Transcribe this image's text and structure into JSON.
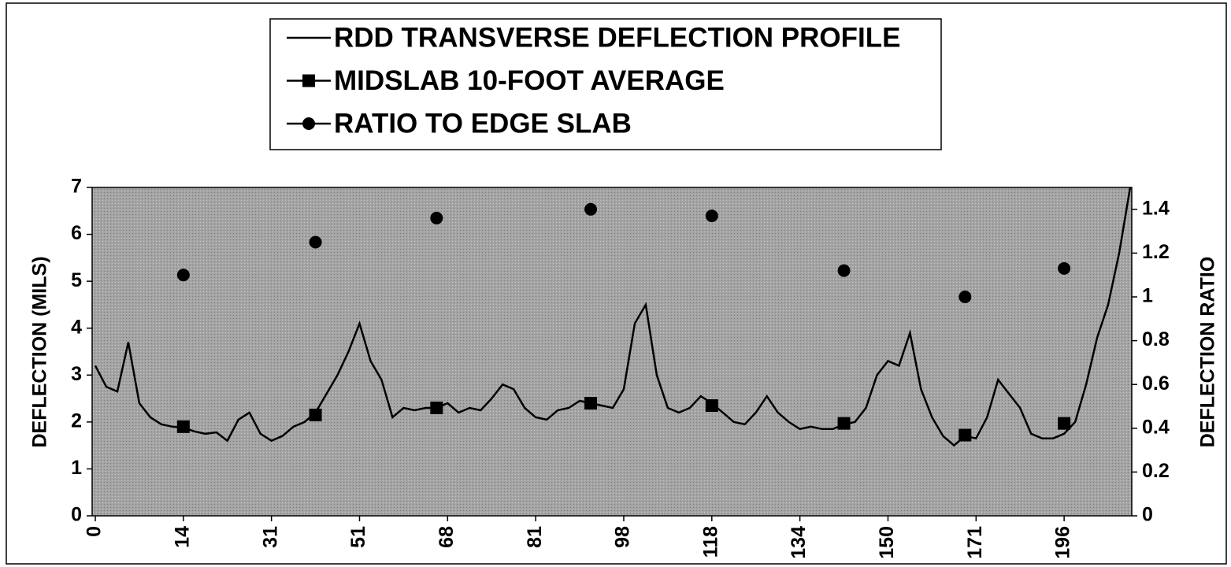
{
  "chart_data": {
    "type": "line",
    "y_label": "DEFLECTION (MILS)",
    "y2_label": "DEFLECTION RATIO",
    "categories": [
      "0",
      null,
      null,
      null,
      null,
      null,
      null,
      null,
      "14",
      null,
      null,
      null,
      null,
      null,
      null,
      null,
      "31",
      null,
      null,
      null,
      null,
      null,
      null,
      null,
      "51",
      null,
      null,
      null,
      null,
      null,
      null,
      null,
      "68",
      null,
      null,
      null,
      null,
      null,
      null,
      null,
      "81",
      null,
      null,
      null,
      null,
      null,
      null,
      null,
      "98",
      null,
      null,
      null,
      null,
      null,
      null,
      null,
      "118",
      null,
      null,
      null,
      null,
      null,
      null,
      null,
      "134",
      null,
      null,
      null,
      null,
      null,
      null,
      null,
      "150",
      null,
      null,
      null,
      null,
      null,
      null,
      null,
      "171",
      null,
      null,
      null,
      null,
      null,
      null,
      null,
      "196",
      null,
      null,
      null,
      null,
      null,
      null
    ],
    "ylim": [
      0,
      7
    ],
    "yticks": [
      0,
      1,
      2,
      3,
      4,
      5,
      6,
      7
    ],
    "y2lim": [
      0,
      1.5
    ],
    "y2ticks": [
      0,
      0.2,
      0.4,
      0.6,
      0.8,
      1,
      1.2,
      1.4
    ],
    "series": [
      {
        "name": "RDD TRANSVERSE DEFLECTION PROFILE",
        "color": "#000000",
        "marker": "none",
        "values": [
          3.2,
          2.75,
          2.65,
          3.7,
          2.4,
          2.1,
          1.95,
          1.9,
          1.88,
          1.8,
          1.75,
          1.78,
          1.6,
          2.05,
          2.2,
          1.75,
          1.6,
          1.7,
          1.9,
          2.0,
          2.2,
          2.6,
          3.0,
          3.5,
          4.1,
          3.3,
          2.9,
          2.1,
          2.3,
          2.25,
          2.3,
          2.3,
          2.4,
          2.2,
          2.3,
          2.25,
          2.5,
          2.8,
          2.7,
          2.3,
          2.1,
          2.05,
          2.25,
          2.3,
          2.45,
          2.4,
          2.35,
          2.3,
          2.7,
          4.1,
          4.5,
          3.0,
          2.3,
          2.2,
          2.3,
          2.55,
          2.4,
          2.2,
          2.0,
          1.95,
          2.2,
          2.55,
          2.2,
          2.0,
          1.85,
          1.9,
          1.85,
          1.85,
          1.95,
          2.0,
          2.3,
          3.0,
          3.3,
          3.2,
          3.9,
          2.7,
          2.1,
          1.7,
          1.5,
          1.7,
          1.65,
          2.1,
          2.9,
          2.6,
          2.3,
          1.75,
          1.65,
          1.65,
          1.75,
          2.0,
          2.8,
          3.8,
          4.5,
          5.6,
          7.0
        ]
      },
      {
        "name": "MIDSLAB 10-FOOT AVERAGE",
        "color": "#000000",
        "marker": "square",
        "values": [
          null,
          null,
          null,
          null,
          null,
          null,
          null,
          null,
          1.9,
          null,
          null,
          null,
          null,
          null,
          null,
          null,
          null,
          null,
          null,
          null,
          2.15,
          null,
          null,
          null,
          null,
          null,
          null,
          null,
          null,
          null,
          null,
          2.3,
          null,
          null,
          null,
          null,
          null,
          null,
          null,
          null,
          null,
          null,
          null,
          null,
          null,
          2.4,
          null,
          null,
          null,
          null,
          null,
          null,
          null,
          null,
          null,
          null,
          2.35,
          null,
          null,
          null,
          null,
          null,
          null,
          null,
          null,
          null,
          null,
          null,
          1.97,
          null,
          null,
          null,
          null,
          null,
          null,
          null,
          null,
          null,
          null,
          1.72,
          null,
          null,
          null,
          null,
          null,
          null,
          null,
          null,
          1.97,
          null,
          null,
          null,
          null,
          null,
          null
        ]
      },
      {
        "name": "RATIO TO EDGE SLAB",
        "color": "#000000",
        "marker": "circle",
        "axis": "y2",
        "values": [
          null,
          null,
          null,
          null,
          null,
          null,
          null,
          null,
          1.1,
          null,
          null,
          null,
          null,
          null,
          null,
          null,
          null,
          null,
          null,
          null,
          1.25,
          null,
          null,
          null,
          null,
          null,
          null,
          null,
          null,
          null,
          null,
          1.36,
          null,
          null,
          null,
          null,
          null,
          null,
          null,
          null,
          null,
          null,
          null,
          null,
          null,
          1.4,
          null,
          null,
          null,
          null,
          null,
          null,
          null,
          null,
          null,
          null,
          1.37,
          null,
          null,
          null,
          null,
          null,
          null,
          null,
          null,
          null,
          null,
          null,
          1.12,
          null,
          null,
          null,
          null,
          null,
          null,
          null,
          null,
          null,
          null,
          1.0,
          null,
          null,
          null,
          null,
          null,
          null,
          null,
          null,
          1.13,
          null,
          null,
          null,
          null,
          null,
          null
        ]
      }
    ]
  }
}
